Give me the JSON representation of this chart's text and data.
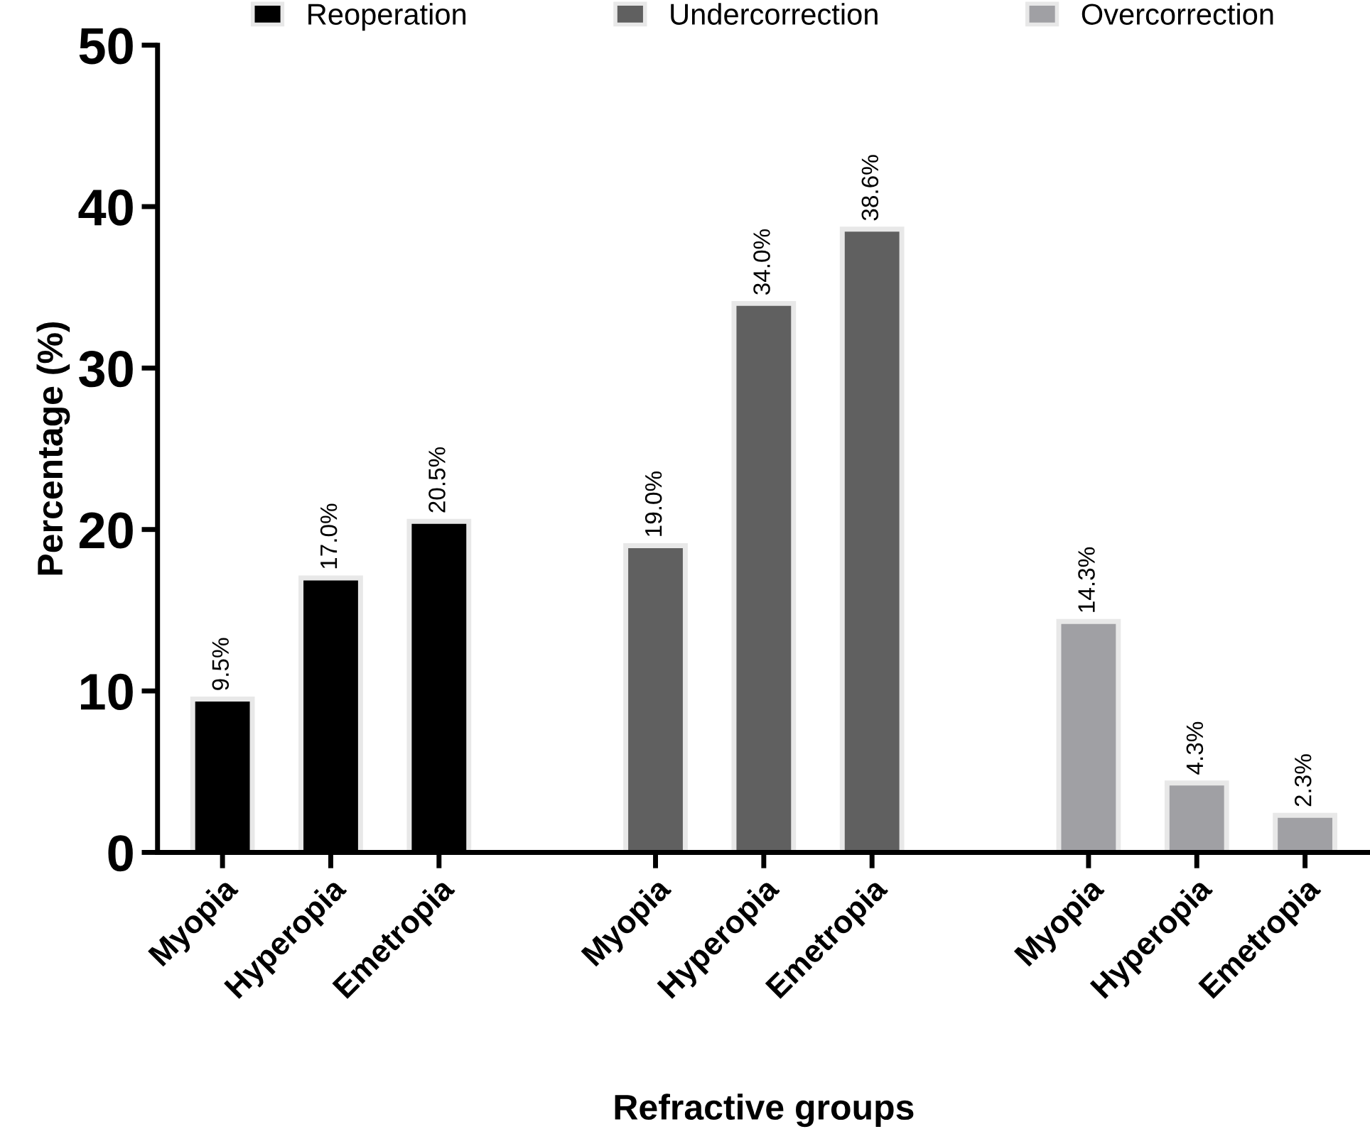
{
  "chart_data": {
    "type": "bar",
    "xlabel": "Refractive groups",
    "ylabel": "Percentage (%)",
    "categories": [
      "Myopia",
      "Hyperopia",
      "Emetropia",
      null,
      "Myopia",
      "Hyperopia",
      "Emetropia",
      null,
      "Myopia",
      "Hyperopia",
      "Emetropia"
    ],
    "series": [
      {
        "name": "Reoperation",
        "color": "#000000",
        "values": [
          9.5,
          17.0,
          20.5,
          null,
          null,
          null,
          null,
          null,
          null,
          null,
          null
        ],
        "value_labels": [
          "9.5%",
          "17.0%",
          "20.5%",
          null,
          null,
          null,
          null,
          null,
          null,
          null,
          null
        ]
      },
      {
        "name": "Undercorrection",
        "color": "#606060",
        "values": [
          null,
          null,
          null,
          null,
          19.0,
          34.0,
          38.6,
          null,
          null,
          null,
          null
        ],
        "value_labels": [
          null,
          null,
          null,
          null,
          "19.0%",
          "34.0%",
          "38.6%",
          null,
          null,
          null,
          null
        ]
      },
      {
        "name": "Overcorrection",
        "color": "#a0a0a4",
        "values": [
          null,
          null,
          null,
          null,
          null,
          null,
          null,
          null,
          14.3,
          4.3,
          2.3
        ],
        "value_labels": [
          null,
          null,
          null,
          null,
          null,
          null,
          null,
          null,
          "14.3%",
          "4.3%",
          "2.3%"
        ]
      }
    ],
    "ylim": [
      0,
      50
    ],
    "yticks": [
      0,
      10,
      20,
      30,
      40,
      50
    ],
    "grid": false,
    "legend": "top"
  }
}
